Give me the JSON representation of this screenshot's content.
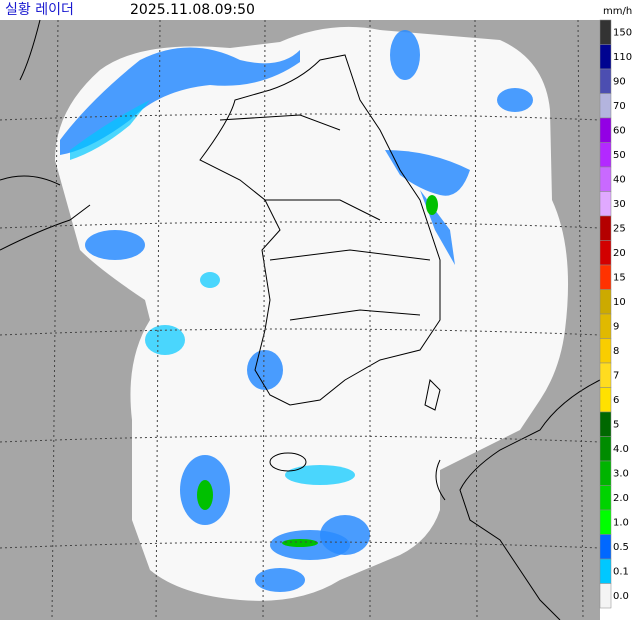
{
  "header": {
    "title": "실황 레이더",
    "timestamp": "2025.11.08.09:50",
    "unit": "mm/h"
  },
  "legend": {
    "items": [
      {
        "label": "150",
        "color": "#333333"
      },
      {
        "label": "110",
        "color": "#000390"
      },
      {
        "label": "90",
        "color": "#4c4eb1"
      },
      {
        "label": "70",
        "color": "#b3b4de"
      },
      {
        "label": "60",
        "color": "#9300e4"
      },
      {
        "label": "50",
        "color": "#b329ff"
      },
      {
        "label": "40",
        "color": "#c969ff"
      },
      {
        "label": "30",
        "color": "#e0a9ff"
      },
      {
        "label": "25",
        "color": "#b40000"
      },
      {
        "label": "20",
        "color": "#d20000"
      },
      {
        "label": "15",
        "color": "#ff3200"
      },
      {
        "label": "10",
        "color": "#ccaa00"
      },
      {
        "label": "9",
        "color": "#e0b900"
      },
      {
        "label": "8",
        "color": "#f9cd00"
      },
      {
        "label": "7",
        "color": "#ffdc1f"
      },
      {
        "label": "6",
        "color": "#ffe100"
      },
      {
        "label": "5",
        "color": "#006800"
      },
      {
        "label": "4.0",
        "color": "#008c00"
      },
      {
        "label": "3.0",
        "color": "#00b400"
      },
      {
        "label": "2.0",
        "color": "#00d300"
      },
      {
        "label": "1.0",
        "color": "#00ff00"
      },
      {
        "label": "0.5",
        "color": "#0068ff"
      },
      {
        "label": "0.1",
        "color": "#00c8ff"
      },
      {
        "label": "0.0",
        "color": "#f4f4f4"
      }
    ]
  }
}
